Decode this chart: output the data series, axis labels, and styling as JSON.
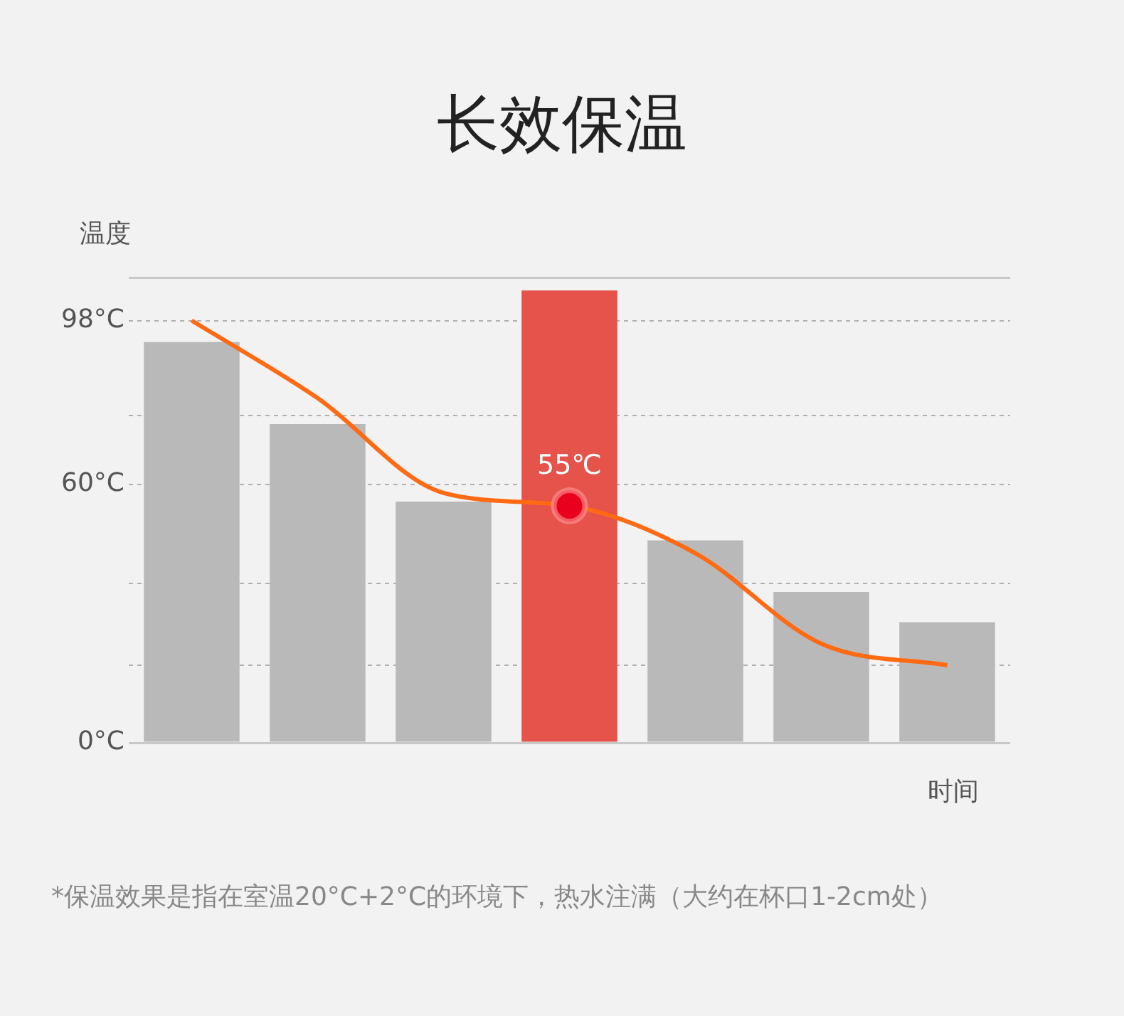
{
  "chart_data": {
    "type": "bar",
    "title": "长效保温",
    "ylabel": "温度",
    "xlabel": "时间",
    "annotations": [
      "*保温效果是指在室温20°C+2°C的环境下，热水注满（大约在杯口1-2cm处）"
    ],
    "categories": [
      null,
      null,
      null,
      null,
      null,
      null,
      null
    ],
    "series": [
      {
        "colors": [
          "#b9b9b9",
          "#b9b9b9",
          "#b9b9b9",
          "#e5534b",
          "#b9b9b9",
          "#b9b9b9",
          "#b9b9b9"
        ],
        "values": [
          93,
          74,
          56,
          105,
          47,
          35,
          28
        ]
      },
      {
        "type": "line",
        "color": "#ff6a13",
        "values": [
          98,
          80,
          58,
          55,
          44,
          23,
          18
        ],
        "marker": "none"
      },
      {
        "type": "scatter",
        "color": "#e8001c",
        "values": [
          null,
          null,
          null,
          55,
          null,
          null,
          null
        ],
        "value_labels": [
          null,
          null,
          null,
          "55℃",
          null,
          null,
          null
        ],
        "marker": "circle"
      }
    ],
    "ylim": [
      0,
      108
    ],
    "yticks": [
      {
        "value": 0,
        "label": "0°C"
      },
      {
        "value": 18,
        "label": null
      },
      {
        "value": 37,
        "label": null
      },
      {
        "value": 60,
        "label": "60°C"
      },
      {
        "value": 76,
        "label": null
      },
      {
        "value": 98,
        "label": "98°C"
      },
      {
        "value": 108,
        "label": null
      }
    ],
    "grid": "y",
    "legend": false,
    "tick_labels": "y"
  }
}
